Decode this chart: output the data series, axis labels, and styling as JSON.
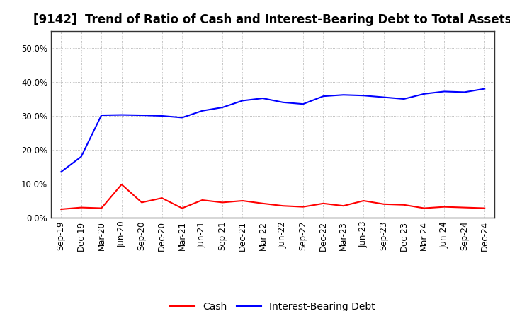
{
  "title": "[9142]  Trend of Ratio of Cash and Interest-Bearing Debt to Total Assets",
  "x_labels": [
    "Sep-19",
    "Dec-19",
    "Mar-20",
    "Jun-20",
    "Sep-20",
    "Dec-20",
    "Mar-21",
    "Jun-21",
    "Sep-21",
    "Dec-21",
    "Mar-22",
    "Jun-22",
    "Sep-22",
    "Dec-22",
    "Mar-23",
    "Jun-23",
    "Sep-23",
    "Dec-23",
    "Mar-24",
    "Jun-24",
    "Sep-24",
    "Dec-24"
  ],
  "cash": [
    2.5,
    3.0,
    2.8,
    9.8,
    4.5,
    5.8,
    2.8,
    5.2,
    4.5,
    5.0,
    4.2,
    3.5,
    3.2,
    4.2,
    3.5,
    5.0,
    4.0,
    3.8,
    2.8,
    3.2,
    3.0,
    2.8
  ],
  "ibd": [
    13.5,
    18.0,
    30.2,
    30.3,
    30.2,
    30.0,
    29.5,
    31.5,
    32.5,
    34.5,
    35.2,
    34.0,
    33.5,
    35.8,
    36.2,
    36.0,
    35.5,
    35.0,
    36.5,
    37.2,
    37.0,
    38.0
  ],
  "cash_color": "#ff0000",
  "ibd_color": "#0000ff",
  "bg_color": "#ffffff",
  "ylim": [
    0,
    55
  ],
  "yticks": [
    0,
    10,
    20,
    30,
    40,
    50
  ],
  "ytick_labels": [
    "0.0%",
    "10.0%",
    "20.0%",
    "30.0%",
    "40.0%",
    "50.0%"
  ],
  "grid_color": "#aaaaaa",
  "legend_cash": "Cash",
  "legend_ibd": "Interest-Bearing Debt",
  "title_fontsize": 12,
  "tick_fontsize": 8.5,
  "legend_fontsize": 10,
  "line_width": 1.5
}
